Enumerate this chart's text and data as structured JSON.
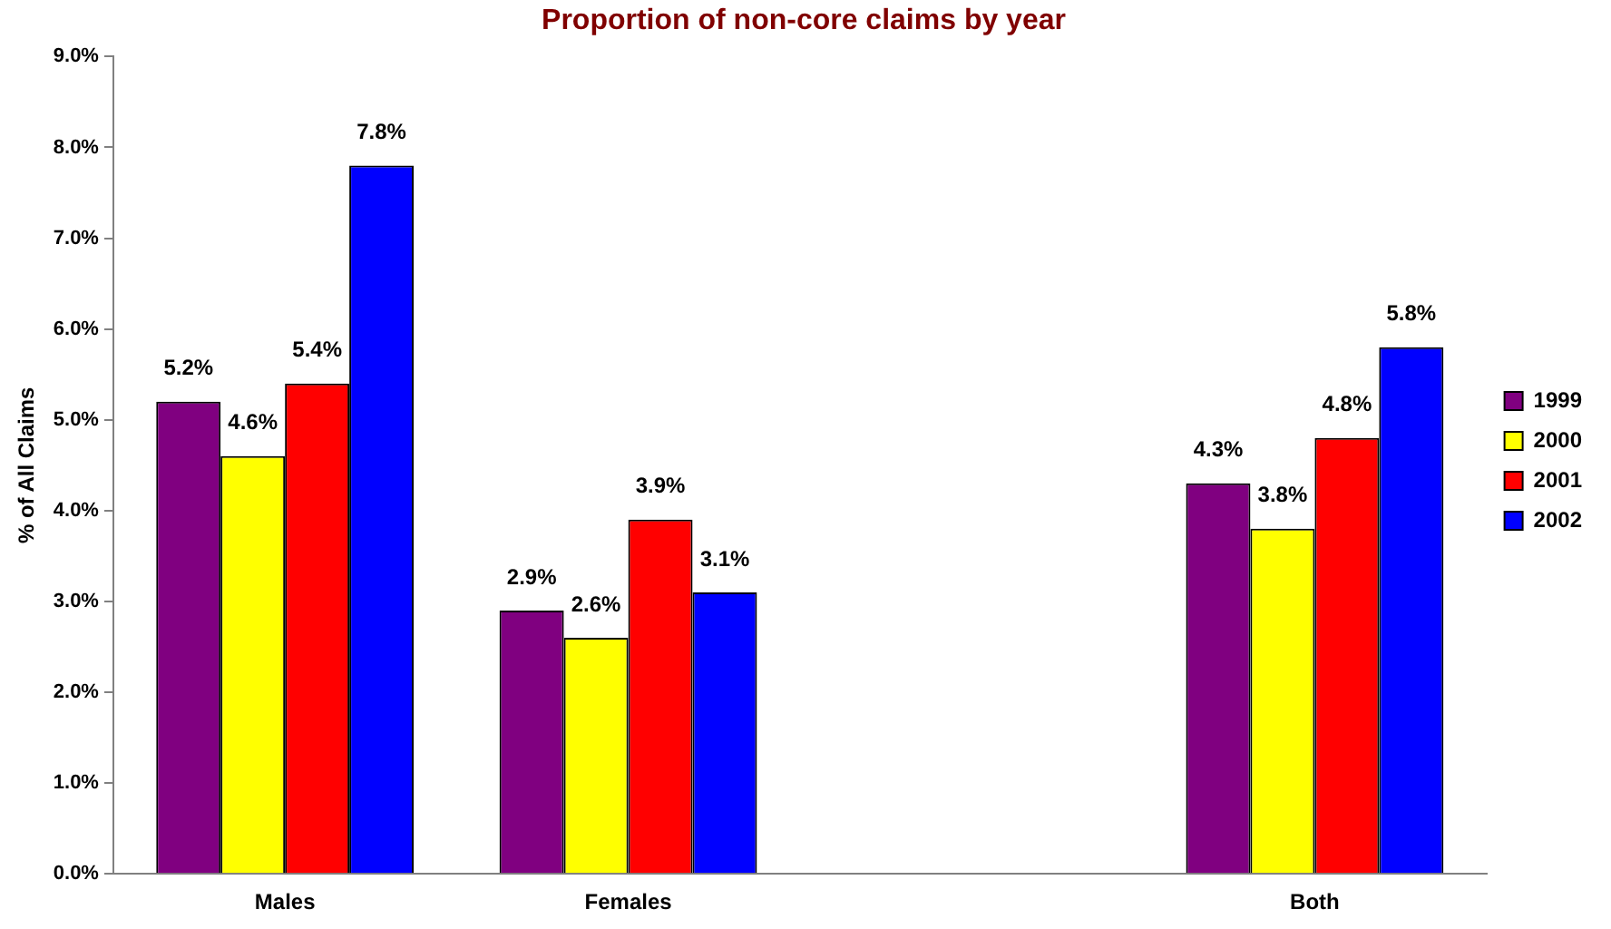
{
  "chart_data": {
    "type": "bar",
    "title": "Proportion of non-core claims by year",
    "ylabel": "% of All Claims",
    "categories": [
      "Males",
      "Females",
      null,
      "Both"
    ],
    "series": [
      {
        "name": "1999",
        "color": "#800080",
        "values": [
          5.2,
          2.9,
          null,
          4.3
        ],
        "value_labels": [
          "5.2%",
          "2.9%",
          null,
          "4.3%"
        ]
      },
      {
        "name": "2000",
        "color": "#ffff00",
        "values": [
          4.6,
          2.6,
          null,
          3.8
        ],
        "value_labels": [
          "4.6%",
          "2.6%",
          null,
          "3.8%"
        ]
      },
      {
        "name": "2001",
        "color": "#ff0000",
        "values": [
          5.4,
          3.9,
          null,
          4.8
        ],
        "value_labels": [
          "5.4%",
          "3.9%",
          null,
          "4.8%"
        ]
      },
      {
        "name": "2002",
        "color": "#0000ff",
        "values": [
          7.8,
          3.1,
          null,
          5.8
        ],
        "value_labels": [
          "7.8%",
          "3.1%",
          null,
          "5.8%"
        ]
      }
    ],
    "ylim": [
      0,
      9
    ],
    "yticks": [
      {
        "value": 0,
        "label": "0.0%"
      },
      {
        "value": 1,
        "label": "1.0%"
      },
      {
        "value": 2,
        "label": "2.0%"
      },
      {
        "value": 3,
        "label": "3.0%"
      },
      {
        "value": 4,
        "label": "4.0%"
      },
      {
        "value": 5,
        "label": "5.0%"
      },
      {
        "value": 6,
        "label": "6.0%"
      },
      {
        "value": 7,
        "label": "7.0%"
      },
      {
        "value": 8,
        "label": "8.0%"
      },
      {
        "value": 9,
        "label": "9.0%"
      }
    ],
    "grid": false,
    "legend": "right"
  }
}
